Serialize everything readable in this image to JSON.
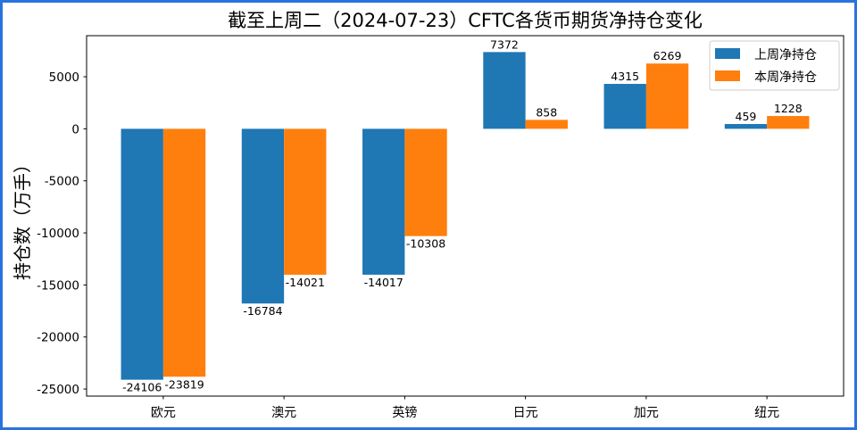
{
  "chart_data": {
    "type": "bar",
    "title": "截至上周二（2024-07-23）CFTC各货币期货净持仓变化",
    "ylabel": "持仓数（万手）",
    "categories": [
      "欧元",
      "澳元",
      "英镑",
      "日元",
      "加元",
      "纽元"
    ],
    "series": [
      {
        "name": "上周净持仓",
        "color": "#1f77b4",
        "values": [
          -24106,
          -16784,
          -14017,
          7372,
          4315,
          459
        ]
      },
      {
        "name": "本周净持仓",
        "color": "#ff7f0e",
        "values": [
          -23819,
          -14021,
          -10308,
          858,
          6269,
          1228
        ]
      }
    ],
    "yticks": [
      5000,
      0,
      -5000,
      -10000,
      -15000,
      -20000,
      -25000
    ],
    "ylim": [
      -25680,
      8946
    ],
    "grid": false,
    "legend": "top-right",
    "data_labels": true
  },
  "colors": {
    "frame_border": "#2a72e0",
    "axes": "#000000",
    "legend_border": "#cccccc"
  }
}
